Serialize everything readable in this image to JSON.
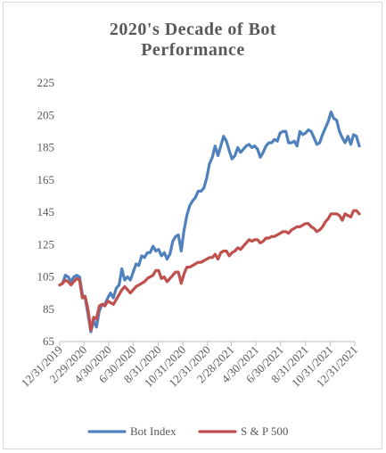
{
  "chart_data": {
    "type": "line",
    "title": "2020's Decade of Bot\nPerformance",
    "xlabel": "",
    "ylabel": "",
    "ylim": [
      65,
      225
    ],
    "yticks": [
      65,
      85,
      105,
      125,
      145,
      165,
      185,
      205,
      225
    ],
    "xlim": [
      "12/31/2019",
      "12/31/2021"
    ],
    "xtick_labels": [
      "12/31/2019",
      "2/29/2020",
      "4/30/2020",
      "6/30/2020",
      "8/31/2020",
      "10/31/2020",
      "12/31/2020",
      "2/28/2021",
      "4/30/2021",
      "6/30/2021",
      "8/31/2021",
      "10/31/2021",
      "12/31/2021"
    ],
    "grid": false,
    "legend_position": "bottom",
    "series": [
      {
        "name": "Bot Index",
        "color": "#4f81bd",
        "points": [
          [
            "12/31/2019",
            100
          ],
          [
            "1/7/2020",
            101
          ],
          [
            "1/14/2020",
            106
          ],
          [
            "1/21/2020",
            105
          ],
          [
            "1/28/2020",
            102
          ],
          [
            "2/4/2020",
            105
          ],
          [
            "2/11/2020",
            106
          ],
          [
            "2/18/2020",
            105
          ],
          [
            "2/25/2020",
            94
          ],
          [
            "3/3/2020",
            92
          ],
          [
            "3/10/2020",
            82
          ],
          [
            "3/17/2020",
            71
          ],
          [
            "3/24/2020",
            78
          ],
          [
            "3/31/2020",
            74
          ],
          [
            "4/7/2020",
            84
          ],
          [
            "4/14/2020",
            88
          ],
          [
            "4/21/2020",
            88
          ],
          [
            "4/28/2020",
            92
          ],
          [
            "5/5/2020",
            95
          ],
          [
            "5/12/2020",
            92
          ],
          [
            "5/19/2020",
            98
          ],
          [
            "5/26/2020",
            100
          ],
          [
            "6/2/2020",
            110
          ],
          [
            "6/9/2020",
            103
          ],
          [
            "6/16/2020",
            105
          ],
          [
            "6/23/2020",
            103
          ],
          [
            "6/30/2020",
            108
          ],
          [
            "7/7/2020",
            113
          ],
          [
            "7/14/2020",
            112
          ],
          [
            "7/21/2020",
            118
          ],
          [
            "7/28/2020",
            117
          ],
          [
            "8/4/2020",
            120
          ],
          [
            "8/11/2020",
            120
          ],
          [
            "8/18/2020",
            124
          ],
          [
            "8/25/2020",
            121
          ],
          [
            "9/1/2020",
            122
          ],
          [
            "9/8/2020",
            118
          ],
          [
            "9/15/2020",
            120
          ],
          [
            "9/22/2020",
            116
          ],
          [
            "9/29/2020",
            119
          ],
          [
            "10/6/2020",
            127
          ],
          [
            "10/13/2020",
            130
          ],
          [
            "10/20/2020",
            131
          ],
          [
            "10/27/2020",
            121
          ],
          [
            "11/3/2020",
            134
          ],
          [
            "11/10/2020",
            143
          ],
          [
            "11/17/2020",
            149
          ],
          [
            "11/24/2020",
            152
          ],
          [
            "12/1/2020",
            154
          ],
          [
            "12/8/2020",
            158
          ],
          [
            "12/15/2020",
            158
          ],
          [
            "12/22/2020",
            160
          ],
          [
            "12/29/2020",
            166
          ],
          [
            "1/5/2021",
            175
          ],
          [
            "1/12/2021",
            179
          ],
          [
            "1/19/2021",
            186
          ],
          [
            "1/26/2021",
            180
          ],
          [
            "2/2/2021",
            186
          ],
          [
            "2/9/2021",
            192
          ],
          [
            "2/16/2021",
            189
          ],
          [
            "2/23/2021",
            183
          ],
          [
            "3/2/2021",
            178
          ],
          [
            "3/9/2021",
            180
          ],
          [
            "3/16/2021",
            185
          ],
          [
            "3/23/2021",
            182
          ],
          [
            "3/30/2021",
            184
          ],
          [
            "4/6/2021",
            186
          ],
          [
            "4/13/2021",
            187
          ],
          [
            "4/20/2021",
            185
          ],
          [
            "4/27/2021",
            186
          ],
          [
            "5/4/2021",
            184
          ],
          [
            "5/11/2021",
            179
          ],
          [
            "5/18/2021",
            182
          ],
          [
            "5/25/2021",
            186
          ],
          [
            "6/1/2021",
            188
          ],
          [
            "6/8/2021",
            188
          ],
          [
            "6/15/2021",
            190
          ],
          [
            "6/22/2021",
            189
          ],
          [
            "6/29/2021",
            194
          ],
          [
            "7/6/2021",
            195
          ],
          [
            "7/13/2021",
            195
          ],
          [
            "7/20/2021",
            188
          ],
          [
            "7/27/2021",
            188
          ],
          [
            "8/3/2021",
            189
          ],
          [
            "8/10/2021",
            186
          ],
          [
            "8/17/2021",
            195
          ],
          [
            "8/24/2021",
            193
          ],
          [
            "8/31/2021",
            194
          ],
          [
            "9/7/2021",
            196
          ],
          [
            "9/14/2021",
            195
          ],
          [
            "9/21/2021",
            191
          ],
          [
            "9/28/2021",
            187
          ],
          [
            "10/5/2021",
            188
          ],
          [
            "10/12/2021",
            193
          ],
          [
            "10/19/2021",
            197
          ],
          [
            "10/26/2021",
            201
          ],
          [
            "11/2/2021",
            207
          ],
          [
            "11/9/2021",
            203
          ],
          [
            "11/16/2021",
            202
          ],
          [
            "11/23/2021",
            195
          ],
          [
            "11/30/2021",
            191
          ],
          [
            "12/7/2021",
            188
          ],
          [
            "12/14/2021",
            192
          ],
          [
            "12/21/2021",
            187
          ],
          [
            "12/28/2021",
            193
          ],
          [
            "1/4/2022",
            192
          ],
          [
            "1/11/2022",
            186
          ]
        ]
      },
      {
        "name": "S & P 500",
        "color": "#c0504d",
        "points": [
          [
            "12/31/2019",
            100
          ],
          [
            "1/7/2020",
            101
          ],
          [
            "1/14/2020",
            103
          ],
          [
            "1/21/2020",
            102
          ],
          [
            "1/28/2020",
            100
          ],
          [
            "2/4/2020",
            102
          ],
          [
            "2/11/2020",
            104
          ],
          [
            "2/18/2020",
            103
          ],
          [
            "2/25/2020",
            92
          ],
          [
            "3/3/2020",
            93
          ],
          [
            "3/10/2020",
            85
          ],
          [
            "3/17/2020",
            72
          ],
          [
            "3/24/2020",
            80
          ],
          [
            "3/31/2020",
            79
          ],
          [
            "4/7/2020",
            87
          ],
          [
            "4/14/2020",
            88
          ],
          [
            "4/21/2020",
            87
          ],
          [
            "4/28/2020",
            90
          ],
          [
            "5/5/2020",
            89
          ],
          [
            "5/12/2020",
            88
          ],
          [
            "5/19/2020",
            91
          ],
          [
            "5/26/2020",
            94
          ],
          [
            "6/2/2020",
            97
          ],
          [
            "6/9/2020",
            99
          ],
          [
            "6/16/2020",
            97
          ],
          [
            "6/23/2020",
            95
          ],
          [
            "6/30/2020",
            97
          ],
          [
            "7/7/2020",
            99
          ],
          [
            "7/14/2020",
            100
          ],
          [
            "7/21/2020",
            101
          ],
          [
            "7/28/2020",
            102
          ],
          [
            "8/4/2020",
            104
          ],
          [
            "8/11/2020",
            105
          ],
          [
            "8/18/2020",
            106
          ],
          [
            "8/25/2020",
            109
          ],
          [
            "9/1/2020",
            109
          ],
          [
            "9/8/2020",
            104
          ],
          [
            "9/15/2020",
            105
          ],
          [
            "9/22/2020",
            102
          ],
          [
            "9/29/2020",
            104
          ],
          [
            "10/6/2020",
            106
          ],
          [
            "10/13/2020",
            108
          ],
          [
            "10/20/2020",
            108
          ],
          [
            "10/27/2020",
            101
          ],
          [
            "11/3/2020",
            107
          ],
          [
            "11/10/2020",
            111
          ],
          [
            "11/17/2020",
            111
          ],
          [
            "11/24/2020",
            112
          ],
          [
            "12/1/2020",
            113
          ],
          [
            "12/8/2020",
            114
          ],
          [
            "12/15/2020",
            114
          ],
          [
            "12/22/2020",
            115
          ],
          [
            "12/29/2020",
            116
          ],
          [
            "1/5/2021",
            117
          ],
          [
            "1/12/2021",
            117
          ],
          [
            "1/19/2021",
            119
          ],
          [
            "1/26/2021",
            116
          ],
          [
            "2/2/2021",
            120
          ],
          [
            "2/9/2021",
            121
          ],
          [
            "2/16/2021",
            121
          ],
          [
            "2/23/2021",
            118
          ],
          [
            "3/2/2021",
            120
          ],
          [
            "3/9/2021",
            121
          ],
          [
            "3/16/2021",
            123
          ],
          [
            "3/23/2021",
            122
          ],
          [
            "3/30/2021",
            124
          ],
          [
            "4/6/2021",
            126
          ],
          [
            "4/13/2021",
            128
          ],
          [
            "4/20/2021",
            127
          ],
          [
            "4/27/2021",
            128
          ],
          [
            "5/4/2021",
            128
          ],
          [
            "5/11/2021",
            126
          ],
          [
            "5/18/2021",
            127
          ],
          [
            "5/25/2021",
            129
          ],
          [
            "6/1/2021",
            129
          ],
          [
            "6/8/2021",
            130
          ],
          [
            "6/15/2021",
            130
          ],
          [
            "6/22/2021",
            131
          ],
          [
            "6/29/2021",
            132
          ],
          [
            "7/6/2021",
            133
          ],
          [
            "7/13/2021",
            133
          ],
          [
            "7/20/2021",
            132
          ],
          [
            "7/27/2021",
            134
          ],
          [
            "8/3/2021",
            135
          ],
          [
            "8/10/2021",
            136
          ],
          [
            "8/17/2021",
            136
          ],
          [
            "8/24/2021",
            137
          ],
          [
            "8/31/2021",
            138
          ],
          [
            "9/7/2021",
            138
          ],
          [
            "9/14/2021",
            136
          ],
          [
            "9/21/2021",
            135
          ],
          [
            "9/28/2021",
            133
          ],
          [
            "10/5/2021",
            134
          ],
          [
            "10/12/2021",
            136
          ],
          [
            "10/19/2021",
            139
          ],
          [
            "10/26/2021",
            141
          ],
          [
            "11/2/2021",
            144
          ],
          [
            "11/9/2021",
            144
          ],
          [
            "11/16/2021",
            144
          ],
          [
            "11/23/2021",
            143
          ],
          [
            "11/30/2021",
            140
          ],
          [
            "12/7/2021",
            144
          ],
          [
            "12/14/2021",
            143
          ],
          [
            "12/21/2021",
            142
          ],
          [
            "12/28/2021",
            146
          ],
          [
            "1/4/2022",
            146
          ],
          [
            "1/11/2022",
            144
          ]
        ]
      }
    ]
  }
}
